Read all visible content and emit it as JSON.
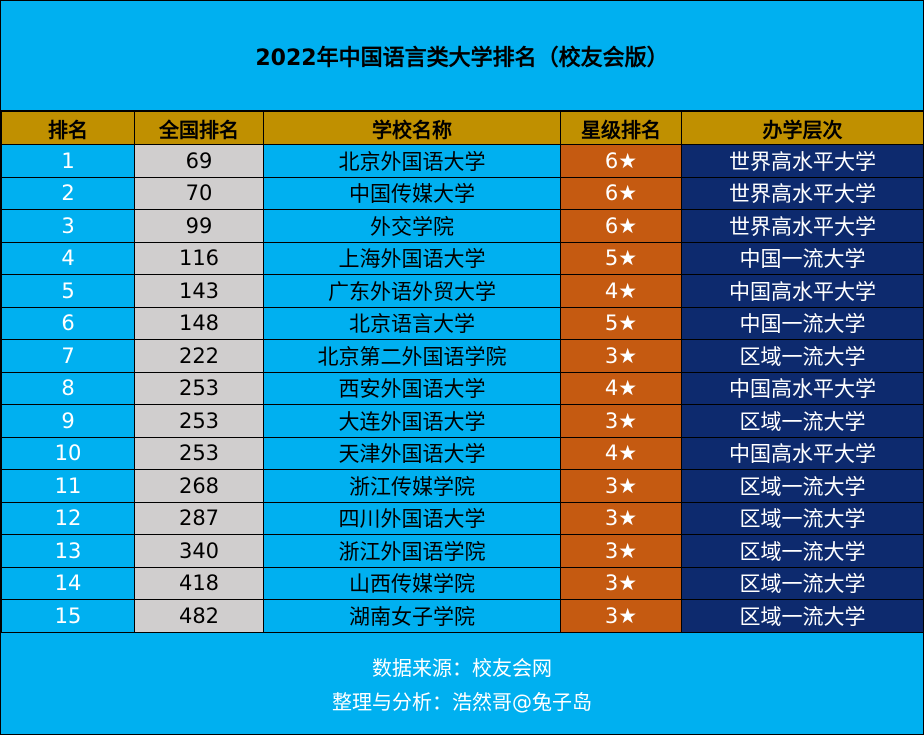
{
  "title": "2022年中国语言类大学排名（校友会版）",
  "headers": [
    "排名",
    "全国排名",
    "学校名称",
    "星级排名",
    "办学层次"
  ],
  "rows": [
    {
      "rank": "1",
      "national": "69",
      "school": "北京外国语大学",
      "star": "6★",
      "level": "世界高水平大学"
    },
    {
      "rank": "2",
      "national": "70",
      "school": "中国传媒大学",
      "star": "6★",
      "level": "世界高水平大学"
    },
    {
      "rank": "3",
      "national": "99",
      "school": "外交学院",
      "star": "6★",
      "level": "世界高水平大学"
    },
    {
      "rank": "4",
      "national": "116",
      "school": "上海外国语大学",
      "star": "5★",
      "level": "中国一流大学"
    },
    {
      "rank": "5",
      "national": "143",
      "school": "广东外语外贸大学",
      "star": "4★",
      "level": "中国高水平大学"
    },
    {
      "rank": "6",
      "national": "148",
      "school": "北京语言大学",
      "star": "5★",
      "level": "中国一流大学"
    },
    {
      "rank": "7",
      "national": "222",
      "school": "北京第二外国语学院",
      "star": "3★",
      "level": "区域一流大学"
    },
    {
      "rank": "8",
      "national": "253",
      "school": "西安外国语大学",
      "star": "4★",
      "level": "中国高水平大学"
    },
    {
      "rank": "9",
      "national": "253",
      "school": "大连外国语大学",
      "star": "3★",
      "level": "区域一流大学"
    },
    {
      "rank": "10",
      "national": "253",
      "school": "天津外国语大学",
      "star": "4★",
      "level": "中国高水平大学"
    },
    {
      "rank": "11",
      "national": "268",
      "school": "浙江传媒学院",
      "star": "3★",
      "level": "区域一流大学"
    },
    {
      "rank": "12",
      "national": "287",
      "school": "四川外国语大学",
      "star": "3★",
      "level": "区域一流大学"
    },
    {
      "rank": "13",
      "national": "340",
      "school": "浙江外国语学院",
      "star": "3★",
      "level": "区域一流大学"
    },
    {
      "rank": "14",
      "national": "418",
      "school": "山西传媒学院",
      "star": "3★",
      "level": "区域一流大学"
    },
    {
      "rank": "15",
      "national": "482",
      "school": "湖南女子学院",
      "star": "3★",
      "level": "区域一流大学"
    }
  ],
  "footer": {
    "source": "数据来源：校友会网",
    "author": "整理与分析：浩然哥@兔子岛"
  },
  "colors": {
    "background": "#00b0f0",
    "header": "#c09000",
    "national_column": "#d0cece",
    "star_column": "#c55a11",
    "level_column": "#0d2a6e"
  }
}
